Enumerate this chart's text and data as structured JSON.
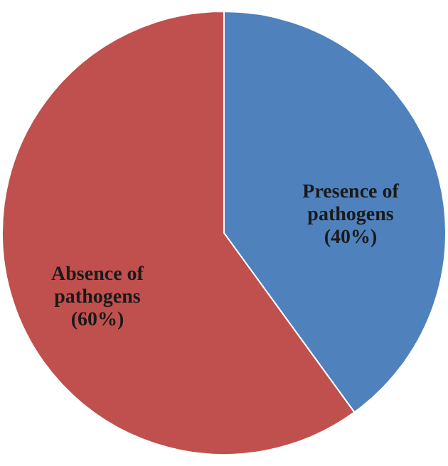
{
  "chart_data": {
    "type": "pie",
    "categories": [
      "Presence of pathogens",
      "Absence of pathogens"
    ],
    "values": [
      40,
      60
    ],
    "colors": [
      "#4f81bd",
      "#c0504d"
    ],
    "value_labels": [
      "(40%)",
      "(60%)"
    ]
  }
}
